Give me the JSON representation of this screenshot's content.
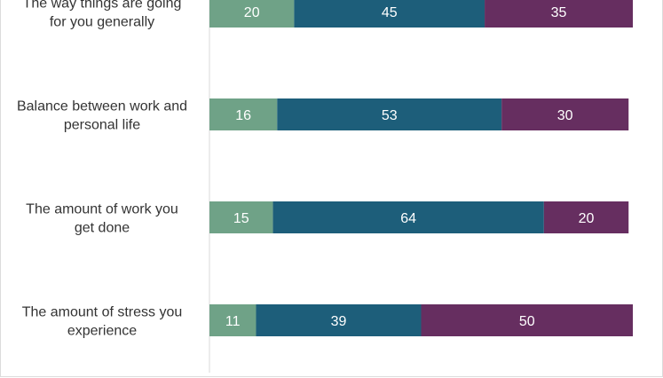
{
  "chart_data": {
    "type": "bar",
    "orientation": "horizontal",
    "stacked": true,
    "categories": [
      "The way things are going for you generally",
      "Balance between work and personal life",
      "The amount of work you get done",
      "The amount of stress you experience"
    ],
    "category_lines": [
      [
        "The way things are going",
        "for you generally"
      ],
      [
        "Balance between work and",
        "personal life"
      ],
      [
        "The amount of work you",
        "get done"
      ],
      [
        "The amount of stress you",
        "experience"
      ]
    ],
    "series": [
      {
        "values": [
          20,
          16,
          15,
          11
        ],
        "color": "#6fa287"
      },
      {
        "values": [
          45,
          53,
          64,
          39
        ],
        "color": "#1d5e7a"
      },
      {
        "values": [
          35,
          30,
          20,
          50
        ],
        "color": "#662e60"
      }
    ],
    "xlim": [
      0,
      100
    ],
    "grid": false,
    "legend": "none"
  }
}
